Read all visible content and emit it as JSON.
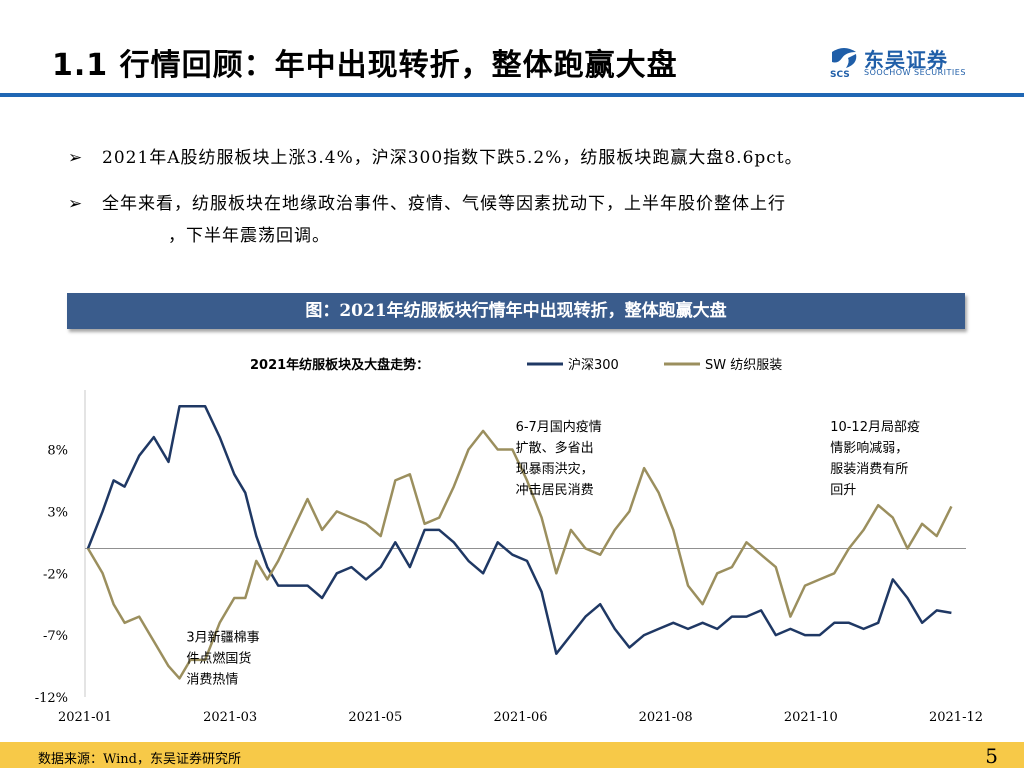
{
  "header": {
    "title": "1.1 行情回顾：年中出现转折，整体跑赢大盘",
    "logo_name": "东吴证券",
    "logo_sub": "SOOCHOW SECURITIES",
    "logo_mark_text": "SCS",
    "logo_icon": "soochow-logo-icon",
    "accent_color": "#1f67b4"
  },
  "bullets": [
    {
      "text": "2021年A股纺服板块上涨3.4%，沪深300指数下跌5.2%，纺服板块跑赢大盘8.6pct。"
    },
    {
      "text": "全年来看，纺服板块在地缘政治事件、疫情、气候等因素扰动下，上半年股价整体上行",
      "text2": "，下半年震荡回调。"
    }
  ],
  "bullet_glyph": "➢",
  "figure_caption": "图：2021年纺服板块行情年中出现转折，整体跑赢大盘",
  "chart_data": {
    "type": "line",
    "title": "2021年纺服板块及大盘走势：",
    "legend_position": "top-center",
    "x_ticks": [
      "2021-01",
      "2021-03",
      "2021-05",
      "2021-06",
      "2021-08",
      "2021-10",
      "2021-12"
    ],
    "y_ticks": [
      "8%",
      "3%",
      "-2%",
      "-7%",
      "-12%"
    ],
    "y_tick_values": [
      8,
      3,
      -2,
      -7,
      -12
    ],
    "ylim": [
      -12,
      12
    ],
    "x_range_months": [
      0,
      12
    ],
    "series": [
      {
        "name": "沪深300",
        "color": "#1f3864",
        "x": [
          0.0,
          0.2,
          0.35,
          0.5,
          0.7,
          0.9,
          1.1,
          1.25,
          1.4,
          1.6,
          1.8,
          2.0,
          2.15,
          2.3,
          2.45,
          2.6,
          2.8,
          3.0,
          3.2,
          3.4,
          3.6,
          3.8,
          4.0,
          4.2,
          4.4,
          4.6,
          4.8,
          5.0,
          5.2,
          5.4,
          5.6,
          5.8,
          6.0,
          6.2,
          6.4,
          6.6,
          6.8,
          7.0,
          7.2,
          7.4,
          7.6,
          7.8,
          8.0,
          8.2,
          8.4,
          8.6,
          8.8,
          9.0,
          9.2,
          9.4,
          9.6,
          9.8,
          10.0,
          10.2,
          10.4,
          10.6,
          10.8,
          11.0,
          11.2,
          11.4,
          11.6,
          11.8
        ],
        "values": [
          0.0,
          3.0,
          5.5,
          5.0,
          7.5,
          9.0,
          7.0,
          11.5,
          11.5,
          11.5,
          9.0,
          6.0,
          4.5,
          1.0,
          -1.5,
          -3.0,
          -3.0,
          -3.0,
          -4.0,
          -2.0,
          -1.5,
          -2.5,
          -1.5,
          0.5,
          -1.5,
          1.5,
          1.5,
          0.5,
          -1.0,
          -2.0,
          0.5,
          -0.5,
          -1.0,
          -3.5,
          -8.5,
          -7.0,
          -5.5,
          -4.5,
          -6.5,
          -8.0,
          -7.0,
          -6.5,
          -6.0,
          -6.5,
          -6.0,
          -6.5,
          -5.5,
          -5.5,
          -5.0,
          -7.0,
          -6.5,
          -7.0,
          -7.0,
          -6.0,
          -6.0,
          -6.5,
          -6.0,
          -2.5,
          -4.0,
          -6.0,
          -5.0,
          -5.2
        ]
      },
      {
        "name": "SW 纺织服装",
        "color": "#9b8f5e",
        "x": [
          0.0,
          0.2,
          0.35,
          0.5,
          0.7,
          0.9,
          1.1,
          1.25,
          1.4,
          1.6,
          1.8,
          2.0,
          2.15,
          2.3,
          2.45,
          2.6,
          2.8,
          3.0,
          3.2,
          3.4,
          3.6,
          3.8,
          4.0,
          4.2,
          4.4,
          4.6,
          4.8,
          5.0,
          5.2,
          5.4,
          5.6,
          5.8,
          6.0,
          6.2,
          6.4,
          6.6,
          6.8,
          7.0,
          7.2,
          7.4,
          7.6,
          7.8,
          8.0,
          8.2,
          8.4,
          8.6,
          8.8,
          9.0,
          9.2,
          9.4,
          9.6,
          9.8,
          10.0,
          10.2,
          10.4,
          10.6,
          10.8,
          11.0,
          11.2,
          11.4,
          11.6,
          11.8
        ],
        "values": [
          0.0,
          -2.0,
          -4.5,
          -6.0,
          -5.5,
          -7.5,
          -9.5,
          -10.5,
          -9.0,
          -9.0,
          -6.0,
          -4.0,
          -4.0,
          -1.0,
          -2.5,
          -1.0,
          1.5,
          4.0,
          1.5,
          3.0,
          2.5,
          2.0,
          1.0,
          5.5,
          6.0,
          2.0,
          2.5,
          5.0,
          8.0,
          9.5,
          8.0,
          8.0,
          5.5,
          2.5,
          -2.0,
          1.5,
          0.0,
          -0.5,
          1.5,
          3.0,
          6.5,
          4.5,
          1.5,
          -3.0,
          -4.5,
          -2.0,
          -1.5,
          0.5,
          -0.5,
          -1.5,
          -5.5,
          -3.0,
          -2.5,
          -2.0,
          0.0,
          1.5,
          3.5,
          2.5,
          0.0,
          2.0,
          1.0,
          3.4
        ]
      }
    ],
    "annotations": [
      {
        "lines": [
          "6-7月国内疫情",
          "扩散、多省出",
          "现暴雨洪灾，",
          "冲击居民消费"
        ],
        "x_month": 6.5,
        "y_value": 9.5
      },
      {
        "lines": [
          "10-12月局部疫",
          "情影响减弱，",
          "服装消费有所",
          "回升"
        ],
        "x_month": 10.8,
        "y_value": 9.5
      },
      {
        "lines": [
          "3月新疆棉事",
          "件点燃国货",
          "消费热情"
        ],
        "x_month": 2.0,
        "y_value": -7.5
      }
    ],
    "reference_line_value": 0
  },
  "footer": {
    "source": "数据来源：Wind，东吴证券研究所",
    "page": "5",
    "bar_color": "#f7c948"
  }
}
